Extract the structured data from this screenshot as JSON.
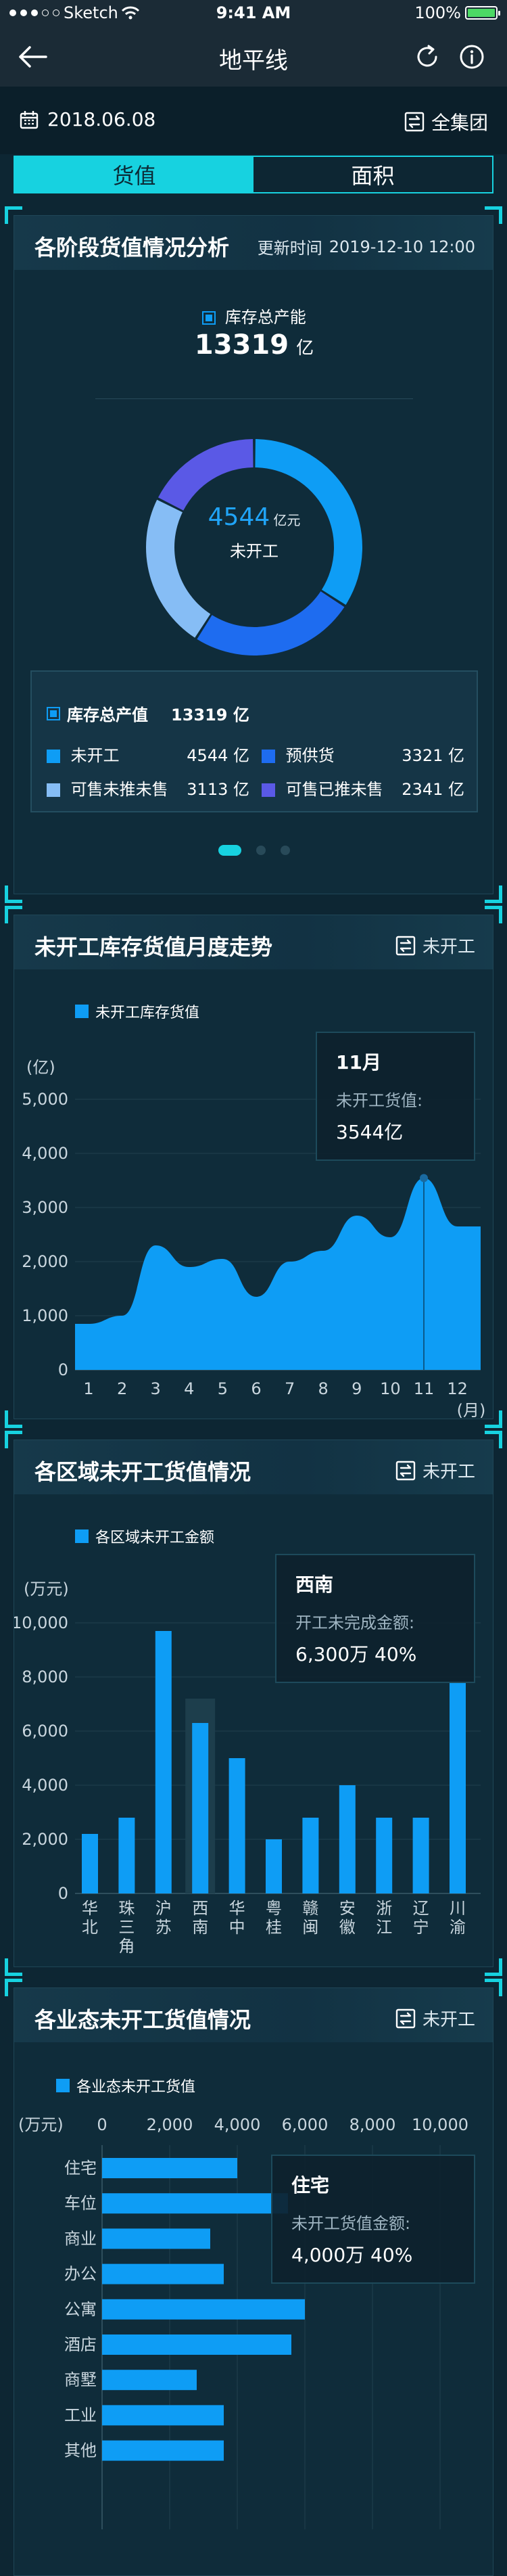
{
  "statusbar": {
    "carrier": "Sketch",
    "time": "9:41 AM",
    "battery": "100%"
  },
  "navbar": {
    "title": "地平线"
  },
  "date": "2018.06.08",
  "group_label": "全集团",
  "tabs": [
    {
      "label": "货值",
      "active": true
    },
    {
      "label": "面积",
      "active": false
    }
  ],
  "card1": {
    "title": "各阶段货值情况分析",
    "update_label": "更新时间",
    "update_time": "2019-12-10 12:00",
    "total_label": "库存总产能",
    "total_value": "13319",
    "total_unit": "亿",
    "donut_center_value": "4544",
    "donut_center_unit": "亿元",
    "donut_center_label": "未开工",
    "summary_label": "库存总产值",
    "summary_value": "13319 亿",
    "items": [
      {
        "label": "未开工",
        "value": "4544 亿",
        "color": "#0e9df5"
      },
      {
        "label": "预供货",
        "value": "3321 亿",
        "color": "#1e6cf0"
      },
      {
        "label": "可售未推未售",
        "value": "3113 亿",
        "color": "#86bdf5"
      },
      {
        "label": "可售已推未售",
        "value": "2341 亿",
        "color": "#5a59e6"
      }
    ]
  },
  "chart_data": [
    {
      "type": "area",
      "title": "未开工库存货值月度走势",
      "series": [
        {
          "name": "未开工库存货值",
          "values": [
            850,
            1000,
            2300,
            1900,
            2050,
            1350,
            2000,
            2200,
            2850,
            2450,
            3544,
            2650
          ]
        }
      ],
      "categories": [
        "1",
        "2",
        "3",
        "4",
        "5",
        "6",
        "7",
        "8",
        "9",
        "10",
        "11",
        "12"
      ],
      "xlabel": "(月)",
      "ylabel": "(亿)",
      "ylim": [
        0,
        5000
      ],
      "yticks": [
        "0",
        "1,000",
        "2,000",
        "3,000",
        "4,000",
        "5,000"
      ],
      "grid": true
    },
    {
      "type": "bar",
      "title": "各区域未开工货值情况",
      "series": [
        {
          "name": "各区域未开工金额",
          "values": [
            2200,
            2800,
            9700,
            6300,
            5000,
            2000,
            2800,
            4000,
            2800,
            2800,
            7800
          ]
        }
      ],
      "categories": [
        "华北",
        "珠三角",
        "沪苏",
        "西南",
        "华中",
        "粤桂",
        "赣闽",
        "安徽",
        "浙江",
        "辽宁",
        "川渝"
      ],
      "ylabel": "(万元)",
      "ylim": [
        0,
        10000
      ],
      "yticks": [
        "0",
        "2,000",
        "4,000",
        "6,000",
        "8,000",
        "10,000"
      ],
      "grid": true
    },
    {
      "type": "bar",
      "orientation": "horizontal",
      "title": "各业态未开工货值情况",
      "series": [
        {
          "name": "各业态未开工货值",
          "values": [
            4000,
            5500,
            3200,
            3600,
            6000,
            5600,
            2800,
            3600,
            3600
          ]
        }
      ],
      "categories": [
        "住宅",
        "车位",
        "商业",
        "办公",
        "公寓",
        "酒店",
        "商墅",
        "工业",
        "其他"
      ],
      "xlabel": "(万元)",
      "xlim": [
        0,
        10000
      ],
      "xticks": [
        "0",
        "2,000",
        "4,000",
        "6,000",
        "8,000",
        "10,000"
      ],
      "grid": true
    }
  ],
  "card2": {
    "filter_label": "未开工",
    "tooltip": {
      "title": "11月",
      "label": "未开工货值:",
      "value": "3544亿"
    }
  },
  "card3": {
    "filter_label": "未开工",
    "tooltip": {
      "title": "西南",
      "label": "开工未完成金额:",
      "value": "6,300万  40%"
    }
  },
  "card4": {
    "filter_label": "未开工",
    "tooltip": {
      "title": "住宅",
      "label": "未开工货值金额:",
      "value": "4,000万  40%"
    }
  }
}
